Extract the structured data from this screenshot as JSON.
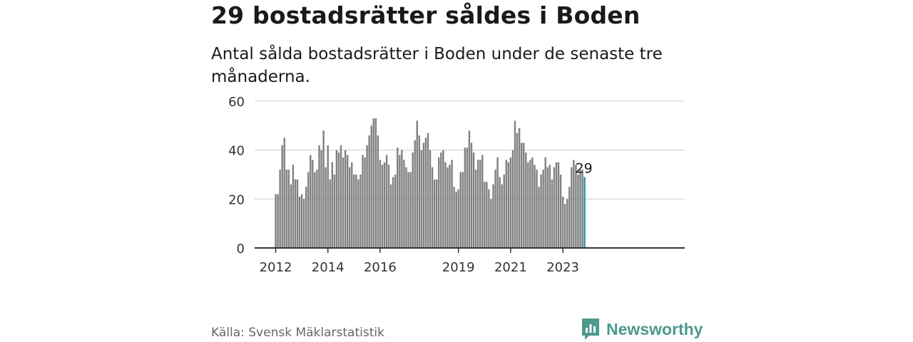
{
  "header": {
    "title": "29 bostadsrätter såldes i Boden",
    "subtitle": "Antal sålda bostadsrätter i Boden under de senaste tre månaderna."
  },
  "footer": {
    "source": "Källa: Svensk Mäklarstatistik",
    "brand": "Newsworthy",
    "brand_icon": "newsworthy-logo-icon"
  },
  "colors": {
    "bar": "#808080",
    "highlight": "#1a9e96",
    "grid": "#d9d9d9",
    "axis": "#333333",
    "brand": "#4d9a8e"
  },
  "chart_data": {
    "type": "bar",
    "title": "29 bostadsrätter såldes i Boden",
    "subtitle": "Antal sålda bostadsrätter i Boden under de senaste tre månaderna.",
    "xlabel": "",
    "ylabel": "",
    "ylim": [
      0,
      60
    ],
    "yticks": [
      0,
      20,
      40,
      60
    ],
    "grid": true,
    "x_tick_labels": [
      {
        "label": "2012",
        "index": 0
      },
      {
        "label": "2014",
        "index": 24
      },
      {
        "label": "2016",
        "index": 48
      },
      {
        "label": "2019",
        "index": 84
      },
      {
        "label": "2021",
        "index": 108
      },
      {
        "label": "2023",
        "index": 132
      }
    ],
    "highlight_label": "29",
    "start": "2012-01",
    "values": [
      22,
      22,
      32,
      42,
      45,
      32,
      32,
      26,
      34,
      28,
      28,
      21,
      22,
      20,
      25,
      31,
      38,
      36,
      31,
      32,
      42,
      40,
      48,
      33,
      42,
      28,
      35,
      30,
      40,
      39,
      42,
      37,
      40,
      38,
      33,
      35,
      30,
      30,
      28,
      30,
      38,
      37,
      42,
      46,
      50,
      53,
      53,
      46,
      36,
      34,
      35,
      38,
      34,
      26,
      29,
      30,
      41,
      38,
      40,
      36,
      33,
      31,
      31,
      39,
      44,
      52,
      46,
      40,
      43,
      45,
      47,
      40,
      33,
      28,
      28,
      37,
      39,
      40,
      35,
      33,
      34,
      36,
      25,
      23,
      24,
      31,
      31,
      41,
      41,
      48,
      43,
      39,
      32,
      36,
      36,
      38,
      27,
      27,
      24,
      20,
      26,
      32,
      37,
      29,
      26,
      30,
      36,
      35,
      37,
      40,
      52,
      47,
      49,
      43,
      43,
      39,
      35,
      36,
      37,
      34,
      32,
      25,
      30,
      32,
      37,
      33,
      34,
      28,
      33,
      35,
      35,
      30,
      21,
      18,
      20,
      25,
      33,
      36,
      34,
      30,
      32,
      32,
      29
    ]
  }
}
